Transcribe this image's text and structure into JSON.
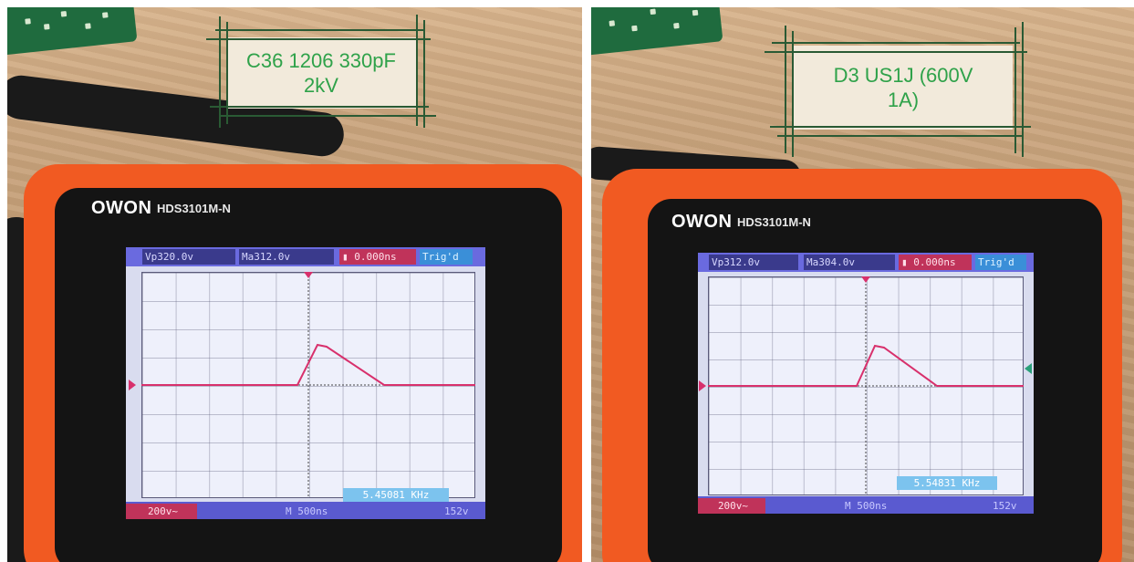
{
  "photos": [
    {
      "label": "C36 1206 330pF\n2kV",
      "scope": {
        "brand": "OWON",
        "model": "HDS3101M-N",
        "readouts": {
          "vp": "Vp320.0v",
          "ma": "Ma312.0v",
          "time": "0.000ns",
          "trig": "Trig'd"
        },
        "frequency": "5.45081 KHz",
        "bottom": {
          "volts_div": "200v~",
          "timebase": "M 500ns",
          "extra": "152v"
        }
      }
    },
    {
      "label": "D3 US1J (600V\n1A)",
      "scope": {
        "brand": "OWON",
        "model": "HDS3101M-N",
        "readouts": {
          "vp": "Vp312.0v",
          "ma": "Ma304.0v",
          "time": "0.000ns",
          "trig": "Trig'd"
        },
        "frequency": "5.54831 KHz",
        "bottom": {
          "volts_div": "200v~",
          "timebase": "M 500ns",
          "extra": "152v"
        }
      }
    }
  ],
  "colors": {
    "trace": "#d8306c",
    "case": "#f15a22",
    "label_text": "#2fa24a"
  }
}
